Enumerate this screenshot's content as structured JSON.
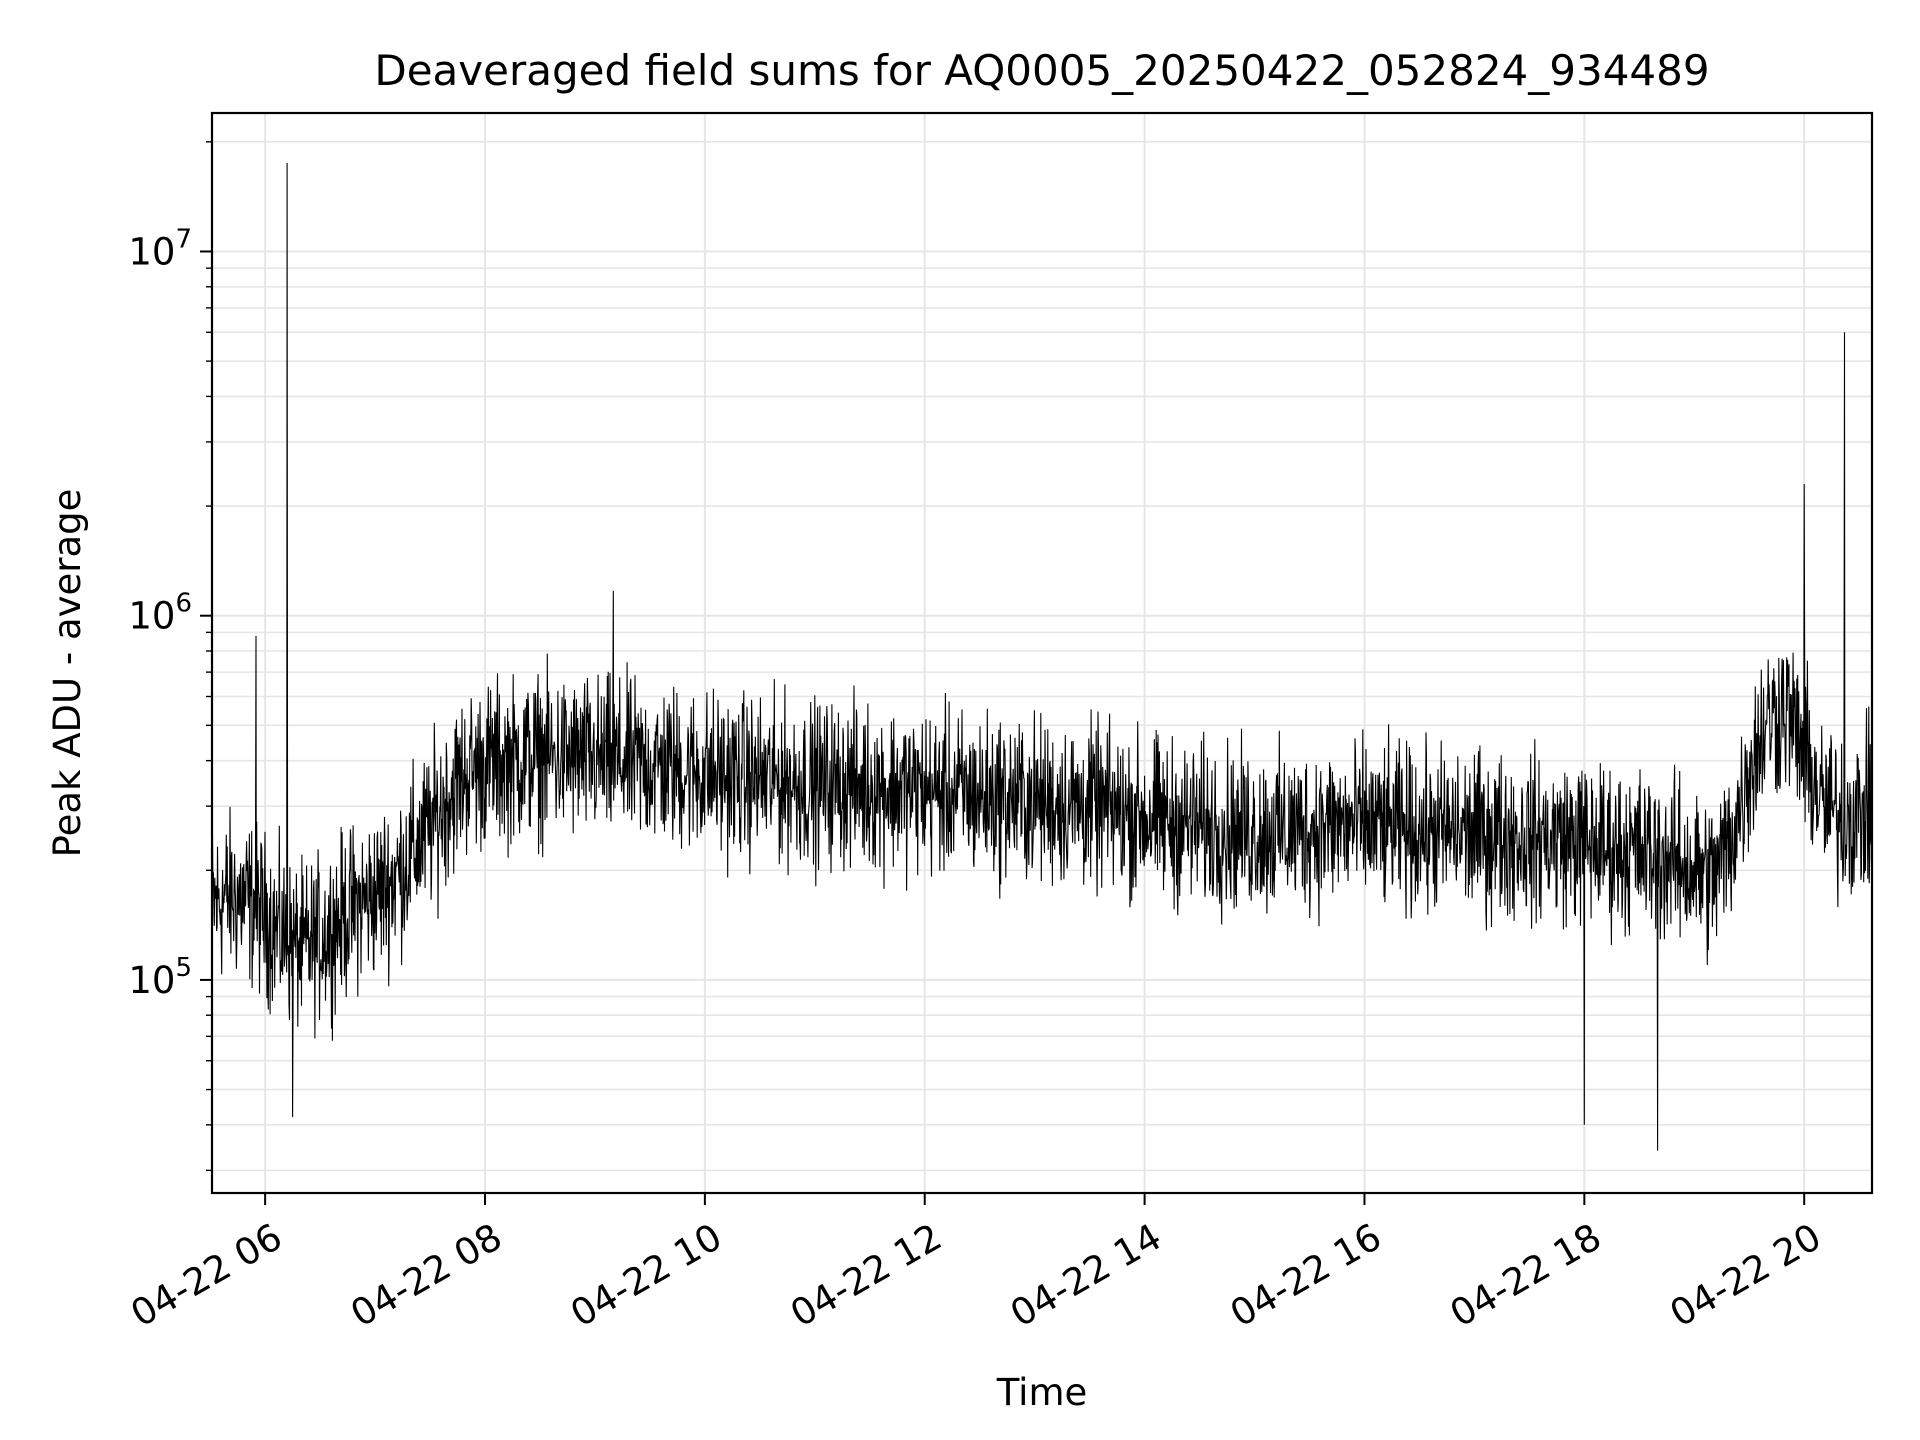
{
  "chart_data": {
    "type": "line",
    "title": "Deaveraged field sums for AQ0005_20250422_052824_934489",
    "xlabel": "Time",
    "ylabel": "Peak ADU - average",
    "yscale": "log",
    "xlim": [
      "2025-04-22 05:31",
      "2025-04-22 20:37"
    ],
    "ylim": [
      26000,
      24000000
    ],
    "x_ticks": [
      {
        "t": "2025-04-22 06:00",
        "label": "04-22 06"
      },
      {
        "t": "2025-04-22 08:00",
        "label": "04-22 08"
      },
      {
        "t": "2025-04-22 10:00",
        "label": "04-22 10"
      },
      {
        "t": "2025-04-22 12:00",
        "label": "04-22 12"
      },
      {
        "t": "2025-04-22 14:00",
        "label": "04-22 14"
      },
      {
        "t": "2025-04-22 16:00",
        "label": "04-22 16"
      },
      {
        "t": "2025-04-22 18:00",
        "label": "04-22 18"
      },
      {
        "t": "2025-04-22 20:00",
        "label": "04-22 20"
      }
    ],
    "y_ticks": [
      {
        "value": 100000,
        "base": "10",
        "exp": "5"
      },
      {
        "value": 1000000,
        "base": "10",
        "exp": "6"
      },
      {
        "value": 10000000,
        "base": "10",
        "exp": "7"
      }
    ],
    "grid": true,
    "line_color": "#000000",
    "grid_color": "#e6e6e6",
    "series": [
      {
        "x": [
          "2025-04-22 05:31",
          "2025-04-22 05:40",
          "2025-04-22 05:50",
          "2025-04-22 06:00",
          "2025-04-22 06:10",
          "2025-04-22 06:20",
          "2025-04-22 06:30",
          "2025-04-22 06:40",
          "2025-04-22 06:50",
          "2025-04-22 07:00",
          "2025-04-22 07:10",
          "2025-04-22 07:20",
          "2025-04-22 07:30",
          "2025-04-22 07:40",
          "2025-04-22 07:50",
          "2025-04-22 08:00",
          "2025-04-22 08:15",
          "2025-04-22 08:30",
          "2025-04-22 08:45",
          "2025-04-22 09:00",
          "2025-04-22 09:15",
          "2025-04-22 09:30",
          "2025-04-22 09:45",
          "2025-04-22 10:00",
          "2025-04-22 10:15",
          "2025-04-22 10:30",
          "2025-04-22 10:45",
          "2025-04-22 11:00",
          "2025-04-22 11:15",
          "2025-04-22 11:30",
          "2025-04-22 11:45",
          "2025-04-22 12:00",
          "2025-04-22 12:15",
          "2025-04-22 12:30",
          "2025-04-22 12:45",
          "2025-04-22 13:00",
          "2025-04-22 13:15",
          "2025-04-22 13:30",
          "2025-04-22 13:45",
          "2025-04-22 14:00",
          "2025-04-22 14:15",
          "2025-04-22 14:30",
          "2025-04-22 14:45",
          "2025-04-22 15:00",
          "2025-04-22 15:15",
          "2025-04-22 15:30",
          "2025-04-22 15:45",
          "2025-04-22 16:00",
          "2025-04-22 16:15",
          "2025-04-22 16:30",
          "2025-04-22 16:45",
          "2025-04-22 17:00",
          "2025-04-22 17:15",
          "2025-04-22 17:30",
          "2025-04-22 17:45",
          "2025-04-22 18:00",
          "2025-04-22 18:15",
          "2025-04-22 18:30",
          "2025-04-22 18:45",
          "2025-04-22 19:00",
          "2025-04-22 19:10",
          "2025-04-22 19:20",
          "2025-04-22 19:30",
          "2025-04-22 19:40",
          "2025-04-22 19:50",
          "2025-04-22 20:00",
          "2025-04-22 20:10",
          "2025-04-22 20:20",
          "2025-04-22 20:37"
        ],
        "y": [
          160000,
          170000,
          165000,
          150000,
          130000,
          120000,
          130000,
          145000,
          160000,
          170000,
          190000,
          220000,
          260000,
          320000,
          370000,
          390000,
          400000,
          410000,
          405000,
          400000,
          395000,
          390000,
          380000,
          370000,
          360000,
          355000,
          350000,
          345000,
          345000,
          340000,
          335000,
          330000,
          325000,
          320000,
          315000,
          310000,
          305000,
          300000,
          290000,
          280000,
          270000,
          265000,
          260000,
          255000,
          255000,
          260000,
          265000,
          265000,
          260000,
          255000,
          255000,
          250000,
          250000,
          245000,
          245000,
          240000,
          230000,
          225000,
          215000,
          200000,
          190000,
          240000,
          380000,
          520000,
          560000,
          420000,
          300000,
          280000,
          290000
        ]
      }
    ],
    "spikes": [
      {
        "x": "2025-04-22 06:12",
        "y": 17500000
      },
      {
        "x": "2025-04-22 20:22",
        "y": 6000000
      },
      {
        "x": "2025-04-22 20:00",
        "y": 2300000
      },
      {
        "x": "2025-04-22 09:10",
        "y": 1170000
      },
      {
        "x": "2025-04-22 05:55",
        "y": 880000
      },
      {
        "x": "2025-04-22 18:40",
        "y": 34000
      },
      {
        "x": "2025-04-22 18:00",
        "y": 40000
      },
      {
        "x": "2025-04-22 06:15",
        "y": 42000
      }
    ]
  }
}
